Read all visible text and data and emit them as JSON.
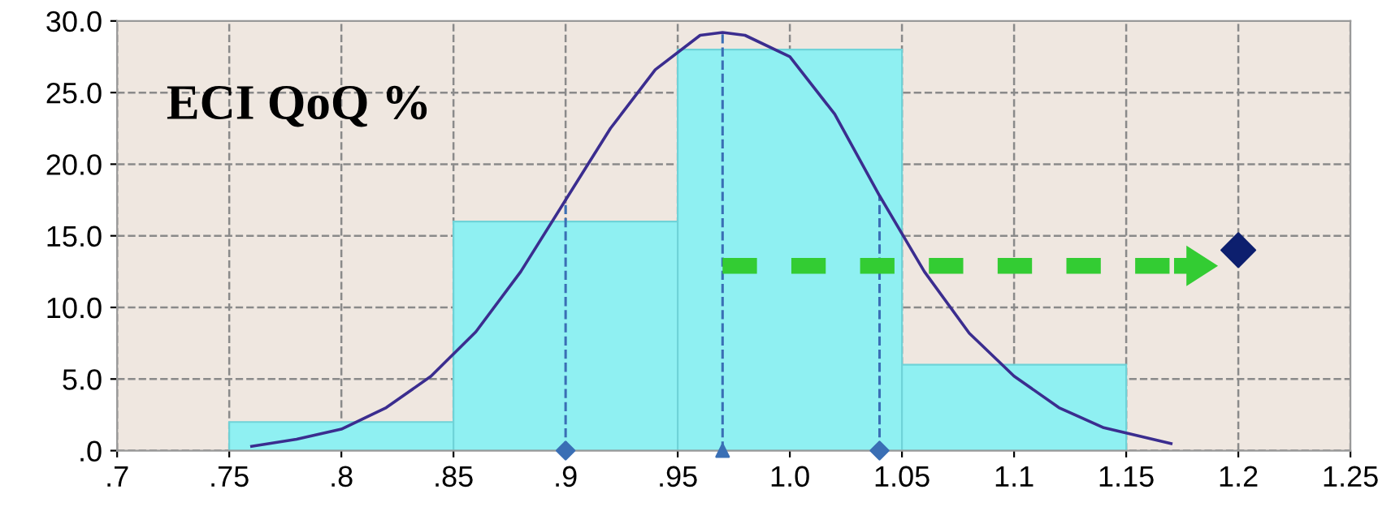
{
  "chart_data": {
    "type": "histogram",
    "title": "ECI QoQ %",
    "bins": [
      0.75,
      0.85,
      0.95,
      1.05,
      1.15
    ],
    "values": [
      2,
      16,
      28,
      6
    ],
    "color": "#8ff0f2",
    "series": [
      {
        "type": "line",
        "color": "#3b2d8f",
        "x": [
          0.76,
          0.78,
          0.8,
          0.82,
          0.84,
          0.86,
          0.88,
          0.9,
          0.92,
          0.94,
          0.96,
          0.97,
          0.98,
          1.0,
          1.02,
          1.04,
          1.06,
          1.08,
          1.1,
          1.12,
          1.14,
          1.17
        ],
        "values": [
          0.3,
          0.8,
          1.5,
          3.0,
          5.2,
          8.3,
          12.5,
          17.5,
          22.5,
          26.6,
          29.0,
          29.2,
          29.0,
          27.5,
          23.5,
          17.8,
          12.5,
          8.2,
          5.2,
          3.0,
          1.6,
          0.5
        ]
      },
      {
        "type": "scatter",
        "color": "#0d1f6e",
        "marker": "diamond",
        "x": [
          1.2
        ],
        "values": [
          14
        ]
      },
      {
        "type": "scatter",
        "color": "#3a6fb5",
        "marker": "diamond",
        "x": [
          0.9,
          1.04
        ],
        "values": [
          0,
          0
        ]
      },
      {
        "type": "scatter",
        "color": "#3a6fb5",
        "marker": "triangle",
        "x": [
          0.97
        ],
        "values": [
          0
        ]
      }
    ],
    "ref_lines": [
      {
        "axis": "x",
        "value": 0.9,
        "color": "#3a6fb5",
        "line_style": "dashed"
      },
      {
        "axis": "x",
        "value": 0.97,
        "color": "#3a6fb5",
        "line_style": "dashed"
      },
      {
        "axis": "x",
        "value": 1.04,
        "color": "#3a6fb5",
        "line_style": "dashed"
      }
    ],
    "xlim": [
      0.7,
      1.25
    ],
    "ylim": [
      0,
      30
    ],
    "xticks": [
      {
        "value": 0.7,
        "label": ".7"
      },
      {
        "value": 0.75,
        "label": ".75"
      },
      {
        "value": 0.8,
        "label": ".8"
      },
      {
        "value": 0.85,
        "label": ".85"
      },
      {
        "value": 0.9,
        "label": ".9"
      },
      {
        "value": 0.95,
        "label": ".95"
      },
      {
        "value": 1.0,
        "label": "1.0"
      },
      {
        "value": 1.05,
        "label": "1.05"
      },
      {
        "value": 1.1,
        "label": "1.1"
      },
      {
        "value": 1.15,
        "label": "1.15"
      },
      {
        "value": 1.2,
        "label": "1.2"
      },
      {
        "value": 1.25,
        "label": "1.25"
      }
    ],
    "yticks": [
      {
        "value": 0,
        "label": ".0"
      },
      {
        "value": 5,
        "label": "5.0"
      },
      {
        "value": 10,
        "label": "10.0"
      },
      {
        "value": 15,
        "label": "15.0"
      },
      {
        "value": 20,
        "label": "20.0"
      },
      {
        "value": 25,
        "label": "25.0"
      },
      {
        "value": 30,
        "label": "30.0"
      }
    ],
    "grid": true,
    "legend": false
  }
}
